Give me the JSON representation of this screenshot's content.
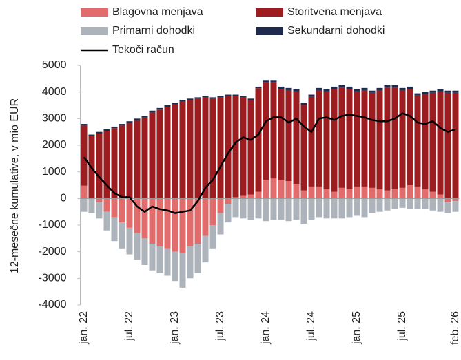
{
  "chart_data": {
    "type": "bar",
    "stacked": true,
    "y_axis_label": "12-mesečne kumulative, v mio EUR",
    "categories": [
      "jan. 22",
      null,
      null,
      null,
      null,
      null,
      "jul. 22",
      null,
      null,
      null,
      null,
      null,
      "jan. 23",
      null,
      null,
      null,
      null,
      null,
      "jul. 23",
      null,
      null,
      null,
      null,
      null,
      "jan. 24",
      null,
      null,
      null,
      null,
      null,
      "jul. 24",
      null,
      null,
      null,
      null,
      null,
      "jan. 25",
      null,
      null,
      null,
      null,
      null,
      "jul. 25",
      null,
      null,
      null,
      null,
      null,
      null,
      "feb. 26"
    ],
    "ylim": [
      -4000,
      5000
    ],
    "yticks": [
      -4000,
      -3000,
      -2000,
      -1000,
      0,
      1000,
      2000,
      3000,
      4000,
      5000
    ],
    "grid": false,
    "series": [
      {
        "name": "Blagovna menjava",
        "type": "bar",
        "color": "#e26b6b",
        "values": [
          480,
          0,
          -150,
          -500,
          -700,
          -900,
          -1100,
          -1300,
          -1500,
          -1700,
          -1800,
          -1900,
          -2000,
          -2050,
          -1800,
          -1700,
          -1400,
          -1000,
          -550,
          -200,
          50,
          100,
          150,
          250,
          700,
          750,
          700,
          650,
          550,
          300,
          450,
          450,
          350,
          250,
          400,
          350,
          450,
          450,
          400,
          350,
          300,
          350,
          400,
          500,
          450,
          350,
          250,
          150,
          -150,
          -100
        ]
      },
      {
        "name": "Storitvena menjava",
        "type": "bar",
        "color": "#9c1c20",
        "values": [
          2260,
          2340,
          2440,
          2540,
          2640,
          2740,
          2840,
          2940,
          3040,
          3240,
          3340,
          3440,
          3540,
          3640,
          3690,
          3740,
          3790,
          3740,
          3790,
          3840,
          3790,
          3690,
          3540,
          3890,
          3670,
          3620,
          3420,
          3420,
          3470,
          3220,
          3370,
          3620,
          3670,
          3870,
          3770,
          3770,
          3570,
          3620,
          3570,
          3720,
          3870,
          3820,
          3670,
          3620,
          3420,
          3570,
          3720,
          3870,
          3970,
          3970
        ]
      },
      {
        "name": "Primarni dohodki",
        "type": "bar",
        "color": "#adb3ba",
        "values": [
          -500,
          -550,
          -600,
          -700,
          -900,
          -1000,
          -1000,
          -1000,
          -1000,
          -1000,
          -1000,
          -1000,
          -1100,
          -1300,
          -1200,
          -1100,
          -1000,
          -900,
          -800,
          -700,
          -700,
          -750,
          -800,
          -750,
          -850,
          -800,
          -800,
          -850,
          -800,
          -950,
          -800,
          -700,
          -750,
          -750,
          -750,
          -700,
          -650,
          -700,
          -550,
          -500,
          -450,
          -400,
          -350,
          -400,
          -400,
          -400,
          -450,
          -500,
          -400,
          -400
        ]
      },
      {
        "name": "Sekundarni dohodki",
        "type": "bar",
        "color": "#1f2b4d",
        "values": [
          60,
          60,
          60,
          60,
          60,
          60,
          60,
          60,
          60,
          60,
          60,
          60,
          60,
          60,
          60,
          60,
          60,
          60,
          60,
          60,
          60,
          60,
          60,
          60,
          80,
          80,
          80,
          80,
          80,
          80,
          80,
          80,
          80,
          80,
          80,
          80,
          80,
          80,
          80,
          80,
          80,
          80,
          80,
          80,
          80,
          80,
          80,
          80,
          80,
          80
        ]
      },
      {
        "name": "Tekoči račun",
        "type": "line",
        "color": "#000000",
        "values": [
          1550,
          1150,
          800,
          500,
          200,
          50,
          50,
          -300,
          -500,
          -300,
          -400,
          -450,
          -550,
          -500,
          -450,
          -100,
          400,
          700,
          1200,
          1700,
          2100,
          2300,
          2200,
          2400,
          2900,
          3050,
          3050,
          2850,
          3000,
          2700,
          2500,
          3000,
          3050,
          2950,
          3100,
          3150,
          3100,
          3050,
          2950,
          2900,
          2900,
          3000,
          3200,
          3100,
          2850,
          2800,
          2900,
          2650,
          2500,
          2600
        ]
      }
    ]
  }
}
